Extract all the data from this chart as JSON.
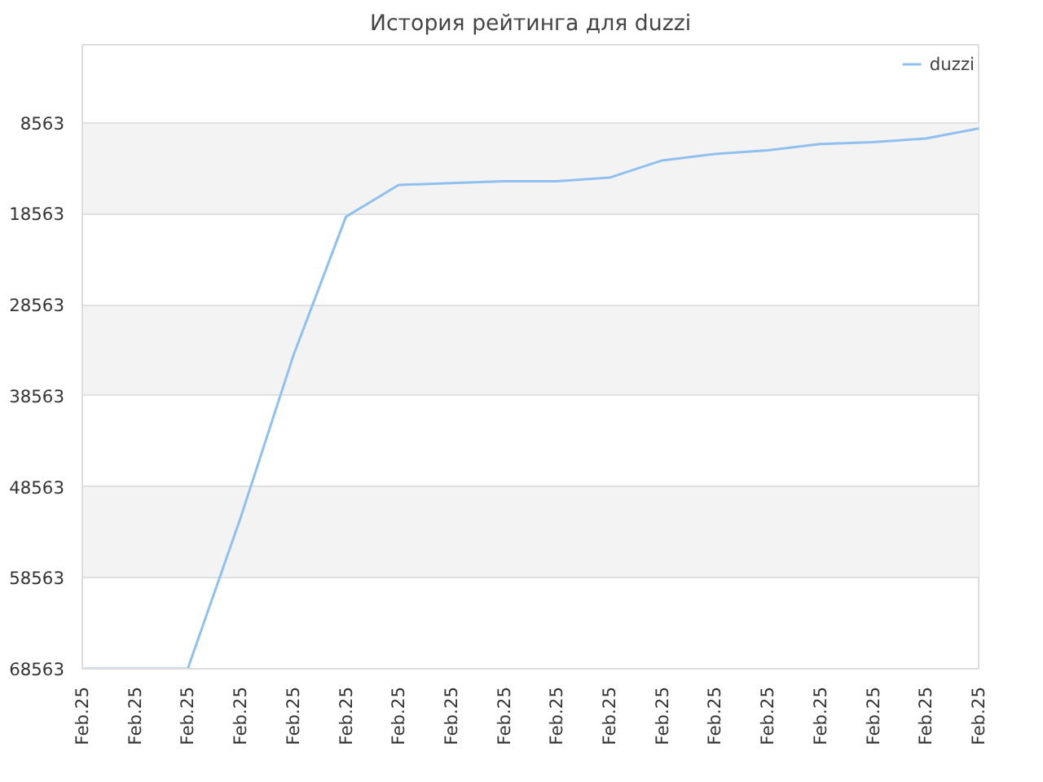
{
  "chart_data": {
    "type": "line",
    "title": "История рейтинга для duzzi",
    "categories": [
      "Feb.25",
      "Feb.25",
      "Feb.25",
      "Feb.25",
      "Feb.25",
      "Feb.25",
      "Feb.25",
      "Feb.25",
      "Feb.25",
      "Feb.25",
      "Feb.25",
      "Feb.25",
      "Feb.25",
      "Feb.25",
      "Feb.25",
      "Feb.25",
      "Feb.25",
      "Feb.25"
    ],
    "series": [
      {
        "name": "duzzi",
        "color": "#90c0f0",
        "values": [
          68563,
          68563,
          68563,
          52000,
          34200,
          18900,
          15400,
          15200,
          15000,
          15000,
          14600,
          12700,
          12000,
          11600,
          10900,
          10700,
          10300,
          9200
        ]
      }
    ],
    "ylim": [
      68563,
      0
    ],
    "yticks": [
      8563,
      18563,
      28563,
      38563,
      48563,
      58563,
      68563
    ],
    "grid": "y",
    "legend": "top right",
    "line_style": "solid"
  }
}
